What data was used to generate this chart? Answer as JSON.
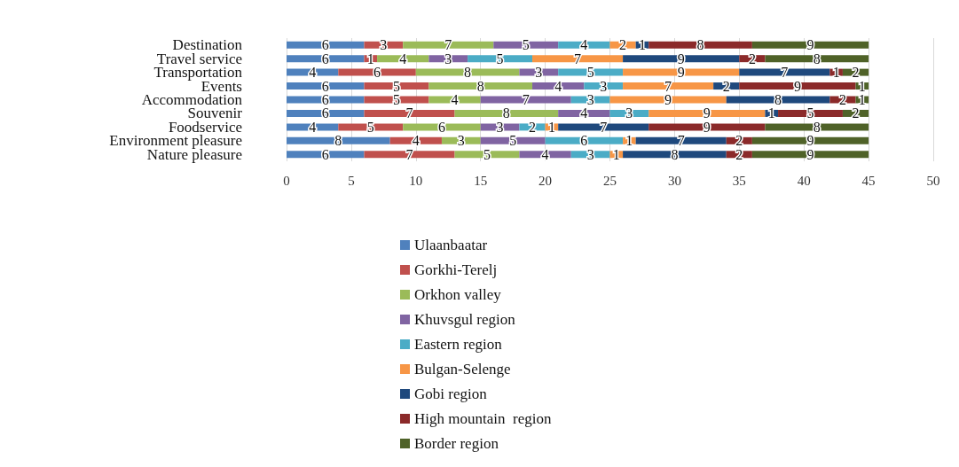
{
  "chart_data": {
    "type": "bar",
    "orientation": "horizontal",
    "stacked": true,
    "data_labels": true,
    "grid": "x",
    "legend": "bottom",
    "categories": [
      "Destination",
      "Travel service",
      "Transportation",
      "Events",
      "Accommodation",
      "Souvenir",
      "Foodservice",
      "Environment pleasure",
      "Nature pleasure"
    ],
    "xlim": [
      0,
      50
    ],
    "xticks": [
      0,
      5,
      10,
      15,
      20,
      25,
      30,
      35,
      40,
      45,
      50
    ],
    "series": [
      {
        "name": "Ulaanbaatar",
        "color": "#4f81bd",
        "values": [
          6,
          6,
          4,
          6,
          6,
          6,
          4,
          8,
          6
        ]
      },
      {
        "name": "Gorkhi-Terelj",
        "color": "#c0504d",
        "values": [
          3,
          1,
          6,
          5,
          5,
          7,
          5,
          4,
          7
        ]
      },
      {
        "name": "Orkhon valley",
        "color": "#9bbb59",
        "values": [
          7,
          4,
          8,
          8,
          4,
          8,
          6,
          3,
          5
        ]
      },
      {
        "name": "Khuvsgul region",
        "color": "#8064a2",
        "values": [
          5,
          3,
          3,
          4,
          7,
          4,
          3,
          5,
          4
        ]
      },
      {
        "name": "Eastern region",
        "color": "#4bacc6",
        "values": [
          4,
          5,
          5,
          3,
          3,
          3,
          2,
          6,
          3
        ]
      },
      {
        "name": "Bulgan-Selenge",
        "color": "#f79646",
        "values": [
          2,
          7,
          9,
          7,
          9,
          9,
          1,
          1,
          1
        ]
      },
      {
        "name": "Gobi region",
        "color": "#1f497d",
        "values": [
          1,
          9,
          7,
          2,
          8,
          1,
          7,
          7,
          8
        ]
      },
      {
        "name": "High mountain  region",
        "color": "#8b2a2a",
        "values": [
          8,
          2,
          1,
          9,
          2,
          5,
          9,
          2,
          2
        ]
      },
      {
        "name": "Border region",
        "color": "#4f6228",
        "values": [
          9,
          8,
          2,
          1,
          1,
          2,
          8,
          9,
          9
        ]
      }
    ]
  }
}
